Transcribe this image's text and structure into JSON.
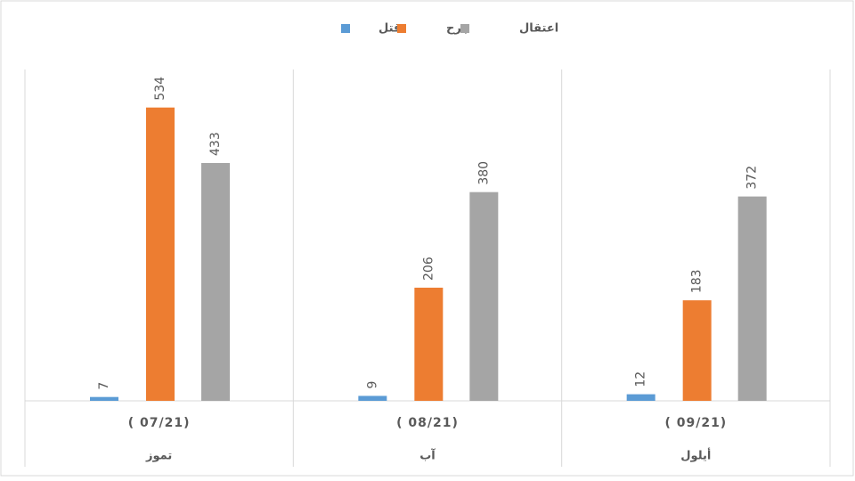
{
  "chart_data": {
    "type": "bar",
    "categories": [
      "( 07/21)",
      "( 08/21)",
      "( 09/21)"
    ],
    "category_groups": [
      "تموز",
      "آب",
      "أيلول"
    ],
    "series": [
      {
        "name": "قتل",
        "color": "#5b9bd5",
        "values": [
          7,
          9,
          12
        ]
      },
      {
        "name": "جرح",
        "color": "#ed7d31",
        "values": [
          534,
          206,
          183
        ]
      },
      {
        "name": "اعتقال",
        "color": "#a5a5a5",
        "values": [
          433,
          380,
          372
        ]
      }
    ],
    "ylim": [
      0,
      600
    ],
    "legend": "top"
  }
}
